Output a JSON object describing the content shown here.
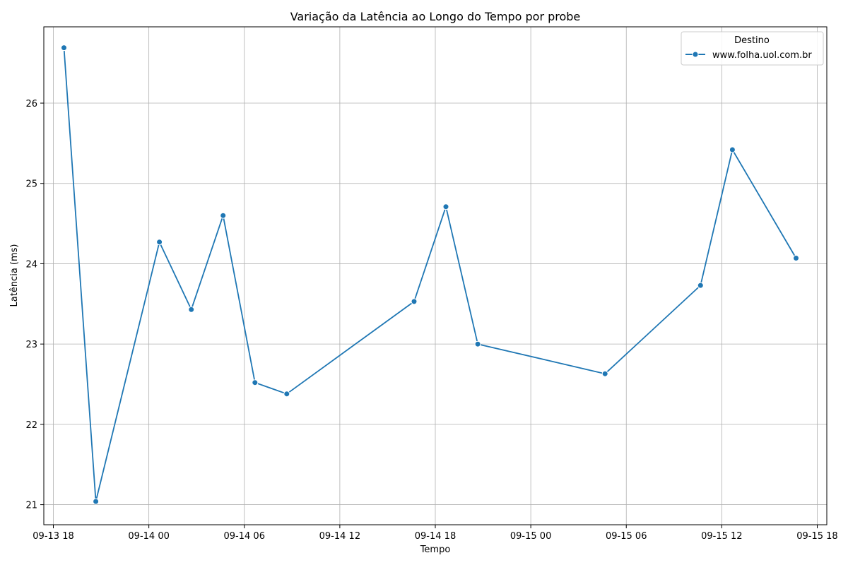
{
  "chart_data": {
    "type": "line",
    "title": "Variação da Latência ao Longo do Tempo por probe",
    "xlabel": "Tempo",
    "ylabel": "Latência (ms)",
    "x_ticks": [
      "09-13 18",
      "09-14 00",
      "09-14 06",
      "09-14 12",
      "09-14 18",
      "09-15 00",
      "09-15 06",
      "09-15 12",
      "09-15 18"
    ],
    "y_ticks": [
      21,
      22,
      23,
      24,
      25,
      26
    ],
    "xlim": [
      "2024-09-13 17:24",
      "2024-09-15 18:36"
    ],
    "ylim": [
      20.75,
      26.95
    ],
    "grid": true,
    "legend": {
      "title": "Destino",
      "placement": "top-right"
    },
    "series": [
      {
        "name": "www.folha.uol.com.br",
        "color": "#1f77b4",
        "marker": "circle",
        "points": [
          {
            "x": "2024-09-13 18:40",
            "y": 26.69
          },
          {
            "x": "2024-09-13 20:40",
            "y": 21.04
          },
          {
            "x": "2024-09-14 00:40",
            "y": 24.27
          },
          {
            "x": "2024-09-14 02:40",
            "y": 23.43
          },
          {
            "x": "2024-09-14 04:40",
            "y": 24.6
          },
          {
            "x": "2024-09-14 06:40",
            "y": 22.52
          },
          {
            "x": "2024-09-14 08:40",
            "y": 22.38
          },
          {
            "x": "2024-09-14 16:40",
            "y": 23.53
          },
          {
            "x": "2024-09-14 18:40",
            "y": 24.71
          },
          {
            "x": "2024-09-14 20:40",
            "y": 23.0
          },
          {
            "x": "2024-09-15 04:40",
            "y": 22.63
          },
          {
            "x": "2024-09-15 10:40",
            "y": 23.73
          },
          {
            "x": "2024-09-15 12:40",
            "y": 25.42
          },
          {
            "x": "2024-09-15 16:40",
            "y": 24.07
          }
        ]
      }
    ]
  }
}
